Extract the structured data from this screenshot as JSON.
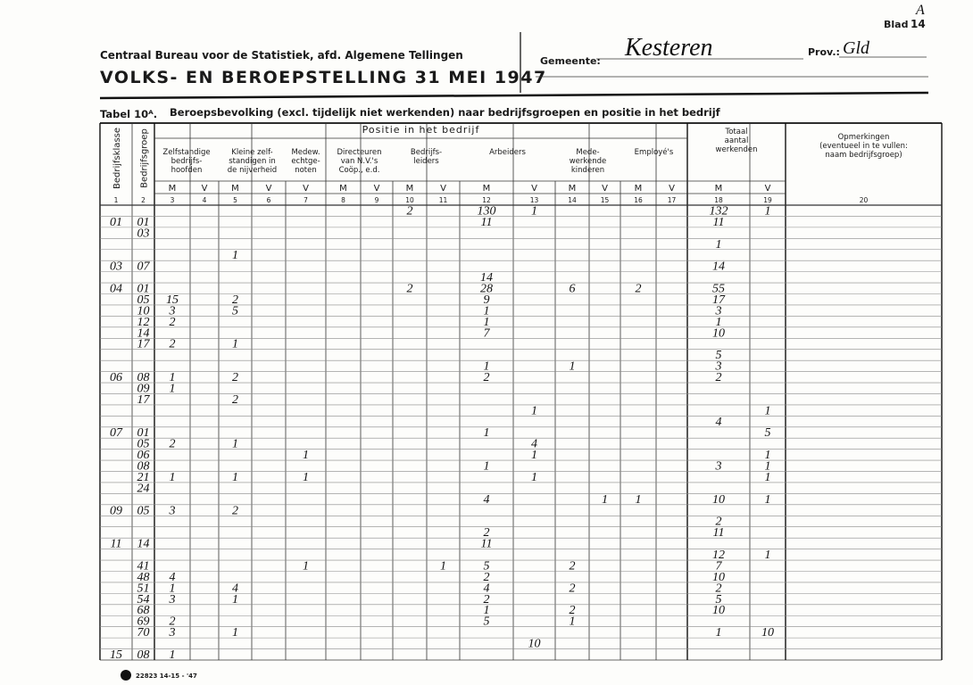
{
  "header": {
    "organisation": "Centraal Bureau voor de Statistiek, afd. Algemene Tellingen",
    "title": "VOLKS- EN BEROEPSTELLING 31 MEI 1947",
    "gemeente_label": "Gemeente:",
    "gemeente": "Kesteren",
    "prov_label": "Prov.:",
    "prov": "Gld",
    "blad_label": "Blad",
    "blad": "14",
    "blad_mark": "A",
    "table_label": "Tabel 10ᴬ.",
    "table_title": "Beroepsbevolking (excl. tijdelijk niet werkenden) naar bedrijfsgroepen en positie in het bedrijf"
  },
  "table": {
    "position_header": "Positie in het bedrijf",
    "column_groups": [
      {
        "label": [
          "Bedrijfsklasse"
        ],
        "numbers": [
          "1"
        ]
      },
      {
        "label": [
          "Bedrijfsgroep"
        ],
        "numbers": [
          "2"
        ]
      },
      {
        "label": [
          "Zelfstandige",
          "bedrijfs-",
          "hoofden"
        ],
        "sub": [
          "M",
          "V"
        ],
        "numbers": [
          "3",
          "4"
        ]
      },
      {
        "label": [
          "Kleine zelf-",
          "standigen in",
          "de nijverheid"
        ],
        "sub": [
          "M",
          "V"
        ],
        "numbers": [
          "5",
          "6"
        ]
      },
      {
        "label": [
          "Medew.",
          "echtge-",
          "noten"
        ],
        "sub": [
          "V"
        ],
        "numbers": [
          "7"
        ]
      },
      {
        "label": [
          "Directeuren",
          "van N.V.'s",
          "Coöp., e.d."
        ],
        "sub": [
          "M",
          "V"
        ],
        "numbers": [
          "8",
          "9"
        ]
      },
      {
        "label": [
          "Bedrijfs-",
          "leiders"
        ],
        "sub": [
          "M",
          "V"
        ],
        "numbers": [
          "10",
          "11"
        ]
      },
      {
        "label": [
          "Arbeiders"
        ],
        "sub": [
          "M",
          "V"
        ],
        "numbers": [
          "12",
          "13"
        ]
      },
      {
        "label": [
          "Mede-",
          "werkende",
          "kinderen"
        ],
        "sub": [
          "M",
          "V"
        ],
        "numbers": [
          "14",
          "15"
        ]
      },
      {
        "label": [
          "Employé's"
        ],
        "sub": [
          "M",
          "V"
        ],
        "numbers": [
          "16",
          "17"
        ]
      },
      {
        "label": [
          "Totaal",
          "aantal",
          "werkenden"
        ],
        "sub": [
          "M",
          "V"
        ],
        "numbers": [
          "18",
          "19"
        ]
      },
      {
        "label": [
          "Opmerkingen",
          "(eventueel in te vullen:",
          "naam bedrijfsgroep)"
        ],
        "numbers": [
          "20"
        ]
      }
    ],
    "rows": [
      {
        "10": "2",
        "12": "130",
        "13": "1",
        "18": "132",
        "19": "1"
      },
      {
        "1": "01",
        "2": "01",
        "12": "11",
        "18": "11"
      },
      {
        "2": "03"
      },
      {
        "18": "1"
      },
      {
        "5": "1"
      },
      {
        "1": "03",
        "2": "07",
        "18": "14"
      },
      {
        "12": "14"
      },
      {
        "1": "04",
        "2": "01",
        "10": "2",
        "12": "28",
        "14": "6",
        "16": "2",
        "18": "55"
      },
      {
        "2": "05",
        "3": "15",
        "5": "2",
        "12": "9",
        "18": "17"
      },
      {
        "2": "10",
        "3": "3",
        "5": "5",
        "12": "1",
        "18": "3"
      },
      {
        "2": "12",
        "3": "2",
        "12": "1",
        "18": "1"
      },
      {
        "2": "14",
        "12": "7",
        "18": "10"
      },
      {
        "2": "17",
        "3": "2",
        "5": "1"
      },
      {
        "18": "5"
      },
      {
        "12": "1",
        "14": "1",
        "18": "3"
      },
      {
        "1": "06",
        "2": "08",
        "3": "1",
        "5": "2",
        "12": "2",
        "18": "2"
      },
      {
        "2": "09",
        "3": "1"
      },
      {
        "2": "17",
        "5": "2"
      },
      {
        "13": "1",
        "19": "1"
      },
      {
        "18": "4"
      },
      {
        "1": "07",
        "2": "01",
        "12": "1",
        "19": "5"
      },
      {
        "2": "05",
        "3": "2",
        "5": "1",
        "13": "4"
      },
      {
        "2": "06",
        "7": "1",
        "13": "1",
        "19": "1"
      },
      {
        "2": "08",
        "12": "1",
        "18": "3",
        "19": "1"
      },
      {
        "2": "21",
        "3": "1",
        "5": "1",
        "7": "1",
        "13": "1",
        "19": "1"
      },
      {
        "2": "24"
      },
      {
        "12": "4",
        "15": "1",
        "16": "1",
        "18": "10",
        "19": "1"
      },
      {
        "1": "09",
        "2": "05",
        "3": "3",
        "5": "2"
      },
      {
        "18": "2"
      },
      {
        "12": "2",
        "18": "11"
      },
      {
        "1": "11",
        "2": "14",
        "12": "11"
      },
      {
        "18": "12",
        "19": "1"
      },
      {
        "2": "41",
        "7": "1",
        "11": "1",
        "12": "5",
        "14": "2",
        "18": "7"
      },
      {
        "2": "48",
        "3": "4",
        "12": "2",
        "18": "10"
      },
      {
        "2": "51",
        "3": "1",
        "5": "4",
        "12": "4",
        "14": "2",
        "18": "2"
      },
      {
        "2": "54",
        "3": "3",
        "5": "1",
        "12": "2",
        "18": "5"
      },
      {
        "2": "68",
        "12": "1",
        "14": "2",
        "18": "10"
      },
      {
        "2": "69",
        "3": "2",
        "12": "5",
        "14": "1"
      },
      {
        "2": "70",
        "3": "3",
        "5": "1",
        "18": "1",
        "19": "10"
      },
      {
        "13": "10"
      },
      {
        "1": "15",
        "2": "08",
        "3": "1"
      }
    ]
  },
  "footer": {
    "print_code": "22823 14-15 - '47"
  }
}
